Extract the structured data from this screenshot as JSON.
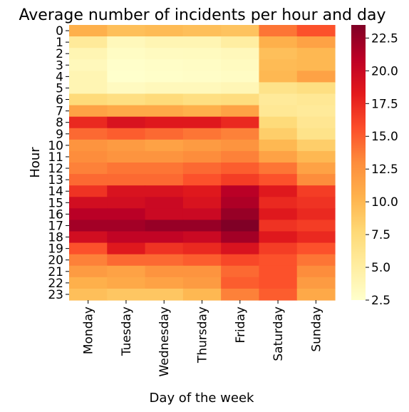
{
  "chart_data": {
    "type": "heatmap",
    "title": "Average number of incidents per hour and day",
    "xlabel": "Day of the week",
    "ylabel": "Hour",
    "x": [
      "Monday",
      "Tuesday",
      "Wednesday",
      "Thursday",
      "Friday",
      "Saturday",
      "Sunday"
    ],
    "y": [
      "0",
      "1",
      "2",
      "3",
      "4",
      "5",
      "6",
      "7",
      "8",
      "9",
      "10",
      "11",
      "12",
      "13",
      "14",
      "15",
      "16",
      "17",
      "18",
      "19",
      "20",
      "21",
      "22",
      "23"
    ],
    "values": [
      [
        10.5,
        9.5,
        9.8,
        9.5,
        9.2,
        14.0,
        15.5
      ],
      [
        5.5,
        3.5,
        4.0,
        4.0,
        5.0,
        10.5,
        11.5
      ],
      [
        4.0,
        3.0,
        3.2,
        3.3,
        3.5,
        9.5,
        10.0
      ],
      [
        3.5,
        2.6,
        2.8,
        2.9,
        3.2,
        9.8,
        10.0
      ],
      [
        4.0,
        2.5,
        2.7,
        2.8,
        3.0,
        10.0,
        11.5
      ],
      [
        4.0,
        3.2,
        3.5,
        3.5,
        3.8,
        6.5,
        7.0
      ],
      [
        7.5,
        7.0,
        7.5,
        7.0,
        7.2,
        5.5,
        5.8
      ],
      [
        11.5,
        11.0,
        11.0,
        10.5,
        11.5,
        5.8,
        5.5
      ],
      [
        17.5,
        19.0,
        18.5,
        18.5,
        17.5,
        7.5,
        6.0
      ],
      [
        14.5,
        15.0,
        14.5,
        14.0,
        13.5,
        8.5,
        6.5
      ],
      [
        12.5,
        12.0,
        11.5,
        12.0,
        12.5,
        10.0,
        8.5
      ],
      [
        13.0,
        12.5,
        12.5,
        13.0,
        13.5,
        11.5,
        10.0
      ],
      [
        13.5,
        14.0,
        14.0,
        14.5,
        15.0,
        14.0,
        11.5
      ],
      [
        14.5,
        14.5,
        14.5,
        15.5,
        16.5,
        15.5,
        13.0
      ],
      [
        17.0,
        19.0,
        19.0,
        18.5,
        21.0,
        18.5,
        16.5
      ],
      [
        19.5,
        19.5,
        20.0,
        19.0,
        21.5,
        17.5,
        17.0
      ],
      [
        21.0,
        21.0,
        20.0,
        20.0,
        22.5,
        18.5,
        17.5
      ],
      [
        22.0,
        22.0,
        22.5,
        22.5,
        23.5,
        17.0,
        16.5
      ],
      [
        19.5,
        20.5,
        20.5,
        20.0,
        22.0,
        18.5,
        17.5
      ],
      [
        15.5,
        18.5,
        17.0,
        17.5,
        19.0,
        16.5,
        15.5
      ],
      [
        13.5,
        14.5,
        14.5,
        15.0,
        16.0,
        15.5,
        14.0
      ],
      [
        12.0,
        11.5,
        12.5,
        12.5,
        14.5,
        15.5,
        13.0
      ],
      [
        10.5,
        11.0,
        11.5,
        12.0,
        15.0,
        15.5,
        12.0
      ],
      [
        9.5,
        9.0,
        9.0,
        10.0,
        13.5,
        15.0,
        11.0
      ]
    ],
    "colorbar": {
      "range": [
        2.5,
        23.5
      ],
      "ticks": [
        "2.5",
        "5.0",
        "7.5",
        "10.0",
        "12.5",
        "15.0",
        "17.5",
        "20.0",
        "22.5"
      ],
      "colormap": "YlOrRd",
      "colors": [
        "#ffffcc",
        "#ffeda0",
        "#fed976",
        "#feb24c",
        "#fd8d3c",
        "#fc4e2a",
        "#e31a1c",
        "#bd0026",
        "#800026"
      ]
    }
  }
}
